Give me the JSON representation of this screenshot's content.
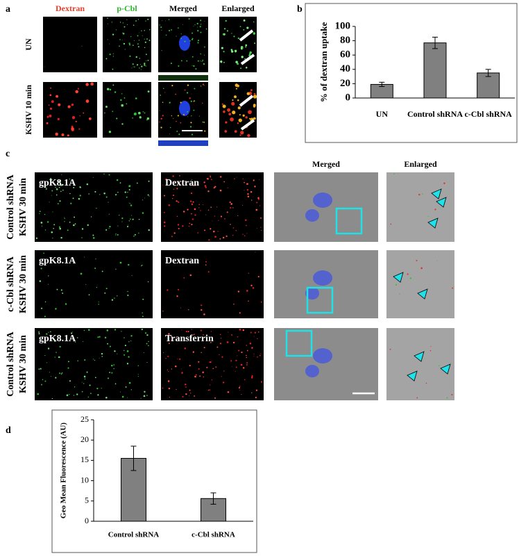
{
  "figure": {
    "panel_labels": [
      "a",
      "b",
      "c",
      "d"
    ],
    "a": {
      "columns": [
        "Dextran",
        "p-Cbl",
        "Merged",
        "Enlarged"
      ],
      "rows": [
        "UN",
        "KSHV 10 min"
      ]
    },
    "c": {
      "columns": [
        "Merged",
        "Enlarged"
      ],
      "rows": [
        [
          "Control shRNA",
          "KSHV 30 min"
        ],
        [
          "c-Cbl shRNA",
          "KSHV 30 min"
        ],
        [
          "Control shRNA",
          "KSHV 30 min"
        ]
      ],
      "image_labels": [
        [
          "gpK8.1A",
          "Dextran"
        ],
        [
          "gpK8.1A",
          "Dextran"
        ],
        [
          "gpK8.1A",
          "Transferrin"
        ]
      ]
    }
  },
  "chart_data": [
    {
      "type": "bar",
      "ylabel": "% of dextran uptake",
      "categories": [
        "UN",
        "Control shRNA",
        "c-Cbl shRNA"
      ],
      "values": [
        19,
        77,
        35
      ],
      "errors": [
        3,
        8,
        5
      ],
      "ylim": [
        0,
        100
      ],
      "yticks": [
        0,
        20,
        40,
        60,
        80,
        100
      ],
      "color": "#808080"
    },
    {
      "type": "bar",
      "ylabel": "Geo Mean Fluorescence (AU)",
      "categories": [
        "Control shRNA",
        "c-Cbl shRNA"
      ],
      "values": [
        15.5,
        5.6
      ],
      "errors": [
        3,
        1.4
      ],
      "ylim": [
        0,
        25
      ],
      "yticks": [
        0,
        5,
        10,
        15,
        20,
        25
      ],
      "color": "#808080"
    }
  ]
}
